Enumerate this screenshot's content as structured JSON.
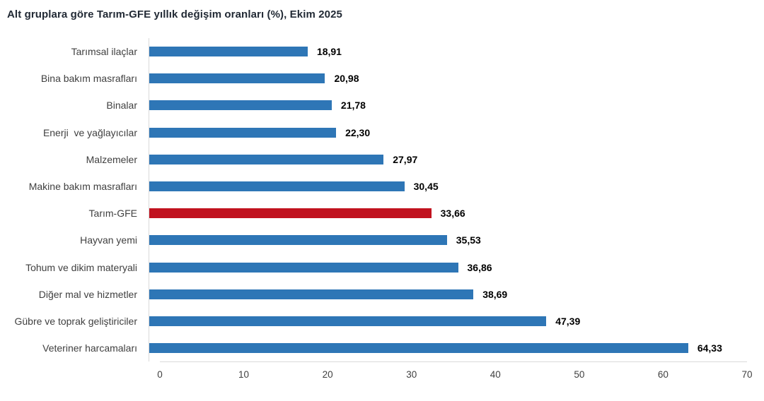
{
  "title": "Alt gruplara göre Tarım-GFE yıllık değişim oranları (%), Ekim 2025",
  "colors": {
    "bar": "#2E76B6",
    "highlight_bar": "#C1121F",
    "axis_line": "#D9D9D9",
    "title_text": "#222A35",
    "category_text": "#404040",
    "value_text": "#000000"
  },
  "chart_data": {
    "type": "bar",
    "orientation": "horizontal",
    "title": "Alt gruplara göre Tarım-GFE yıllık değişim oranları (%), Ekim 2025",
    "categories": [
      "Tarımsal ilaçlar",
      "Bina bakım masrafları",
      "Binalar",
      "Enerji  ve yağlayıcılar",
      "Malzemeler",
      "Makine bakım masrafları",
      "Tarım-GFE",
      "Hayvan yemi",
      "Tohum ve dikim materyali",
      "Diğer mal ve hizmetler",
      "Gübre ve toprak geliştiriciler",
      "Veteriner harcamaları"
    ],
    "values": [
      18.91,
      20.98,
      21.78,
      22.3,
      27.97,
      30.45,
      33.66,
      35.53,
      36.86,
      38.69,
      47.39,
      64.33
    ],
    "value_labels": [
      "18,91",
      "20,98",
      "21,78",
      "22,30",
      "27,97",
      "30,45",
      "33,66",
      "35,53",
      "36,86",
      "38,69",
      "47,39",
      "64,33"
    ],
    "highlight_index": 6,
    "highlight_category": "Tarım-GFE",
    "xlabel": "",
    "ylabel": "",
    "xlim": [
      0,
      70
    ],
    "xticks": [
      0,
      10,
      20,
      30,
      40,
      50,
      60,
      70
    ],
    "grid": false,
    "legend": false
  }
}
